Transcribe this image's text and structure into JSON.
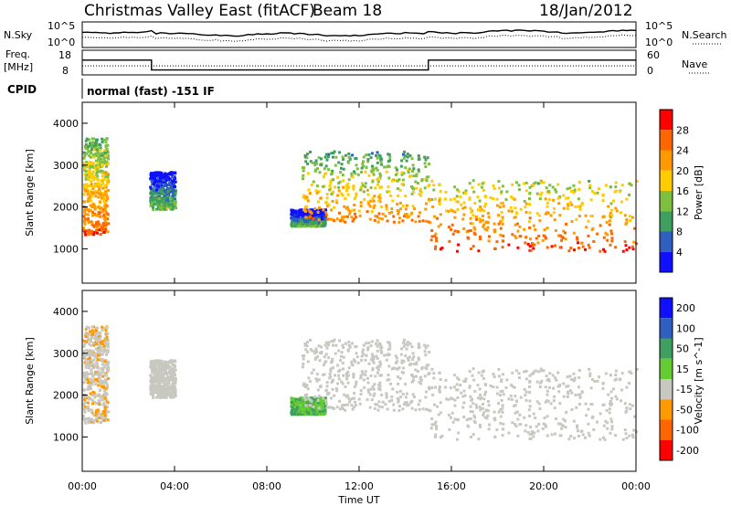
{
  "header": {
    "station_title": "Christmas Valley East (fitACF)",
    "beam_label": "Beam 18",
    "date": "18/Jan/2012"
  },
  "noise_panel": {
    "left_label": "N.Sky",
    "right_label": "N.Search",
    "left_ticks": [
      "10^5",
      "10^0"
    ],
    "right_ticks": [
      "10^5",
      "10^0"
    ]
  },
  "freq_panel": {
    "left_label_1": "Freq.",
    "left_label_2": "[MHz]",
    "right_label": "Nave",
    "left_ticks": [
      "18",
      "8"
    ],
    "right_ticks": [
      "60",
      "0"
    ]
  },
  "cpid": {
    "label": "CPID",
    "text": "normal (fast) -151 IF"
  },
  "power_colorbar": {
    "title": "Power [dB]",
    "ticks": [
      "28",
      "24",
      "20",
      "16",
      "12",
      "8",
      "4"
    ],
    "colors": [
      "#ff0000",
      "#ff6600",
      "#ff9900",
      "#ffcc00",
      "#7fbf3f",
      "#3f9f5f",
      "#2f5fbf",
      "#1010ff"
    ]
  },
  "velocity_colorbar": {
    "title": "Velocity [m s^-1]",
    "ticks": [
      "200",
      "100",
      "50",
      "15",
      "-15",
      "-50",
      "-100",
      "-200"
    ],
    "colors": [
      "#1010ff",
      "#2f5fbf",
      "#3f9f5f",
      "#66cc33",
      "#c8c8c0",
      "#ff9900",
      "#ff6600",
      "#ff0000"
    ]
  },
  "chart_data": {
    "type": "heatmap",
    "xlabel": "Time UT",
    "ylabel": "Slant Range [km]",
    "x_ticks": [
      "00:00",
      "04:00",
      "08:00",
      "12:00",
      "16:00",
      "20:00",
      "00:00"
    ],
    "y_ticks": [
      "1000",
      "2000",
      "3000",
      "4000"
    ],
    "x_range_hours": [
      0,
      24
    ],
    "y_range_km": [
      180,
      4500
    ],
    "panels": [
      "power",
      "velocity"
    ],
    "frequency_mhz": [
      {
        "start_h": 0,
        "end_h": 3,
        "value": 14
      },
      {
        "start_h": 3,
        "end_h": 15,
        "value": 10
      },
      {
        "start_h": 15,
        "end_h": 24,
        "value": 14
      }
    ],
    "echo_regions": [
      {
        "t0": 0.0,
        "t1": 1.1,
        "r0": 1300,
        "r1": 3600,
        "power_db": 24,
        "velocity": -10
      },
      {
        "t0": 2.9,
        "t1": 4.0,
        "r0": 1900,
        "r1": 2800,
        "power_db": 12,
        "velocity": 5
      },
      {
        "t0": 9.0,
        "t1": 10.5,
        "r0": 1500,
        "r1": 1900,
        "power_db": 10,
        "velocity": 30
      },
      {
        "t0": 9.5,
        "t1": 15.0,
        "r0": 1600,
        "r1": 3300,
        "power_db": 22,
        "velocity": -5
      },
      {
        "t0": 15.0,
        "t1": 24.0,
        "r0": 900,
        "r1": 2600,
        "power_db": 26,
        "velocity": 0
      }
    ]
  }
}
